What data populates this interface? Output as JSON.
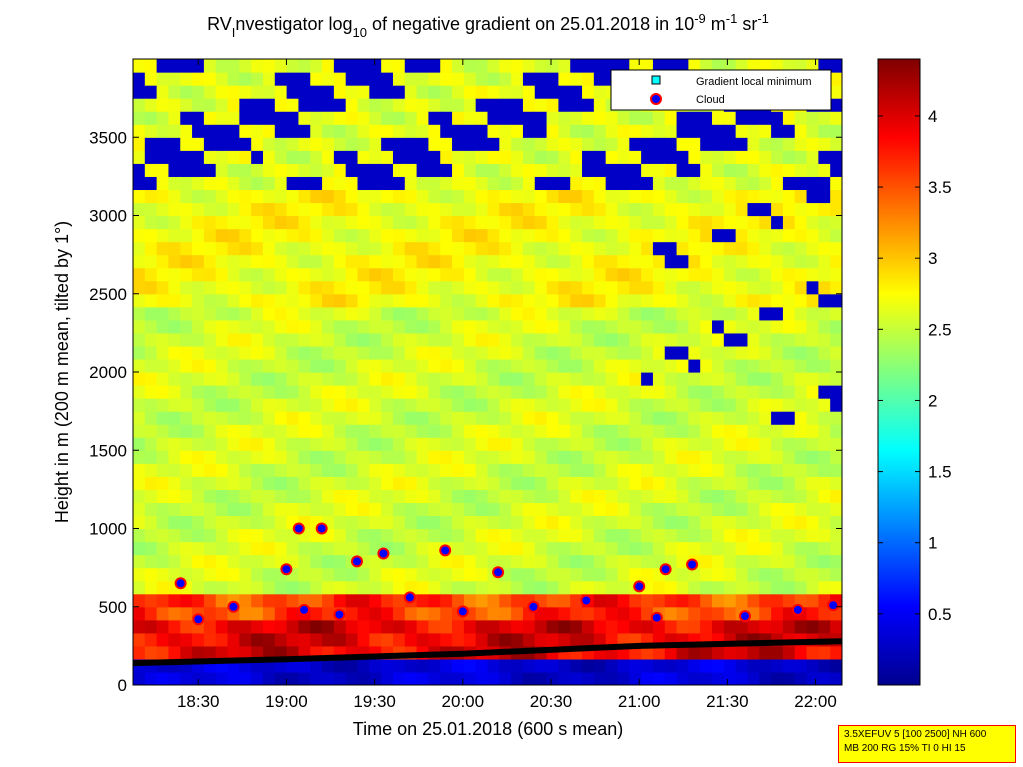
{
  "chart_data": {
    "type": "heatmap",
    "title": {
      "prefix": "RV",
      "sub_i": "I",
      "main": "nvestigator log",
      "sub_10": "10",
      "middle": " of negative gradient on 25.01.2018 in 10",
      "sup_9": "-9",
      "m_unit": " m",
      "sup_1a": "-1",
      "sr_unit": " sr",
      "sup_1b": "-1"
    },
    "xlabel": "Time on 25.01.2018 (600 s mean)",
    "ylabel": "Height in m (200 m mean, tilted by 1°)",
    "x_ticks": [
      "18:30",
      "19:00",
      "19:30",
      "20:00",
      "20:30",
      "21:00",
      "21:30",
      "22:00"
    ],
    "x_tick_hours": [
      18.5,
      19.0,
      19.5,
      20.0,
      20.5,
      21.0,
      21.5,
      22.0
    ],
    "xlim": [
      18.13,
      22.15
    ],
    "y_ticks": [
      0,
      500,
      1000,
      1500,
      2000,
      2500,
      3000,
      3500
    ],
    "ylim": [
      0,
      4000
    ],
    "colorbar_ticks": [
      0.5,
      1,
      1.5,
      2,
      2.5,
      3,
      3.5,
      4
    ],
    "colorbar_range": [
      0,
      4.4
    ],
    "colormap": "jet",
    "legend": {
      "placement": "top-right",
      "entries": [
        {
          "label": "Gradient local minimum",
          "marker": "square",
          "color": "#00ffff",
          "edge": "#000000"
        },
        {
          "label": "Cloud",
          "marker": "circle",
          "color": "#0000ff",
          "edge": "#ff0000"
        }
      ]
    },
    "gradient_local_minimum_line": {
      "x": [
        18.13,
        19.0,
        20.0,
        21.0,
        22.15
      ],
      "y": [
        140,
        165,
        200,
        250,
        280
      ]
    },
    "cloud_points": [
      {
        "x": 18.4,
        "y": 650
      },
      {
        "x": 19.0,
        "y": 740
      },
      {
        "x": 19.07,
        "y": 1000
      },
      {
        "x": 19.2,
        "y": 1000
      },
      {
        "x": 19.4,
        "y": 790
      },
      {
        "x": 19.55,
        "y": 840
      },
      {
        "x": 19.9,
        "y": 860
      },
      {
        "x": 20.2,
        "y": 720
      },
      {
        "x": 21.0,
        "y": 630
      },
      {
        "x": 21.15,
        "y": 740
      },
      {
        "x": 21.3,
        "y": 770
      },
      {
        "x": 22.1,
        "y": 510
      },
      {
        "x": 18.5,
        "y": 420
      },
      {
        "x": 18.7,
        "y": 500
      },
      {
        "x": 19.1,
        "y": 480
      },
      {
        "x": 19.3,
        "y": 450
      },
      {
        "x": 19.7,
        "y": 560
      },
      {
        "x": 20.0,
        "y": 470
      },
      {
        "x": 20.4,
        "y": 500
      },
      {
        "x": 20.7,
        "y": 540
      },
      {
        "x": 21.1,
        "y": 430
      },
      {
        "x": 21.6,
        "y": 440
      },
      {
        "x": 21.9,
        "y": 480
      }
    ]
  },
  "info_box": {
    "line1": "3.5XEFUV 5 [100 2500] NH 600",
    "line2": "MB 200 RG 15% TI 0 HI 15"
  },
  "colors": {
    "no_data": "#00008f",
    "cloud_fill": "#0000ff",
    "cloud_edge": "#ff0000",
    "min_line": "#000000",
    "info_bg": "#ffff00",
    "info_border": "#ff0000"
  }
}
